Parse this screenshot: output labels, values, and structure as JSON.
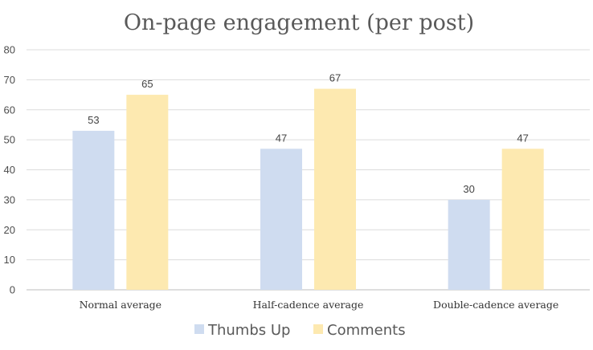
{
  "chart_data": {
    "type": "bar",
    "title": "On-page engagement (per post)",
    "categories": [
      "Normal average",
      "Half-cadence average",
      "Double-cadence average"
    ],
    "series": [
      {
        "name": "Thumbs Up",
        "values": [
          53,
          47,
          30
        ],
        "color": "#cfdcf0"
      },
      {
        "name": "Comments",
        "values": [
          65,
          67,
          47
        ],
        "color": "#fde9b0"
      }
    ],
    "ylim": [
      0,
      80
    ],
    "yticks": [
      0,
      10,
      20,
      30,
      40,
      50,
      60,
      70,
      80
    ],
    "grid": true,
    "legend": "bottom",
    "data_labels": true
  }
}
